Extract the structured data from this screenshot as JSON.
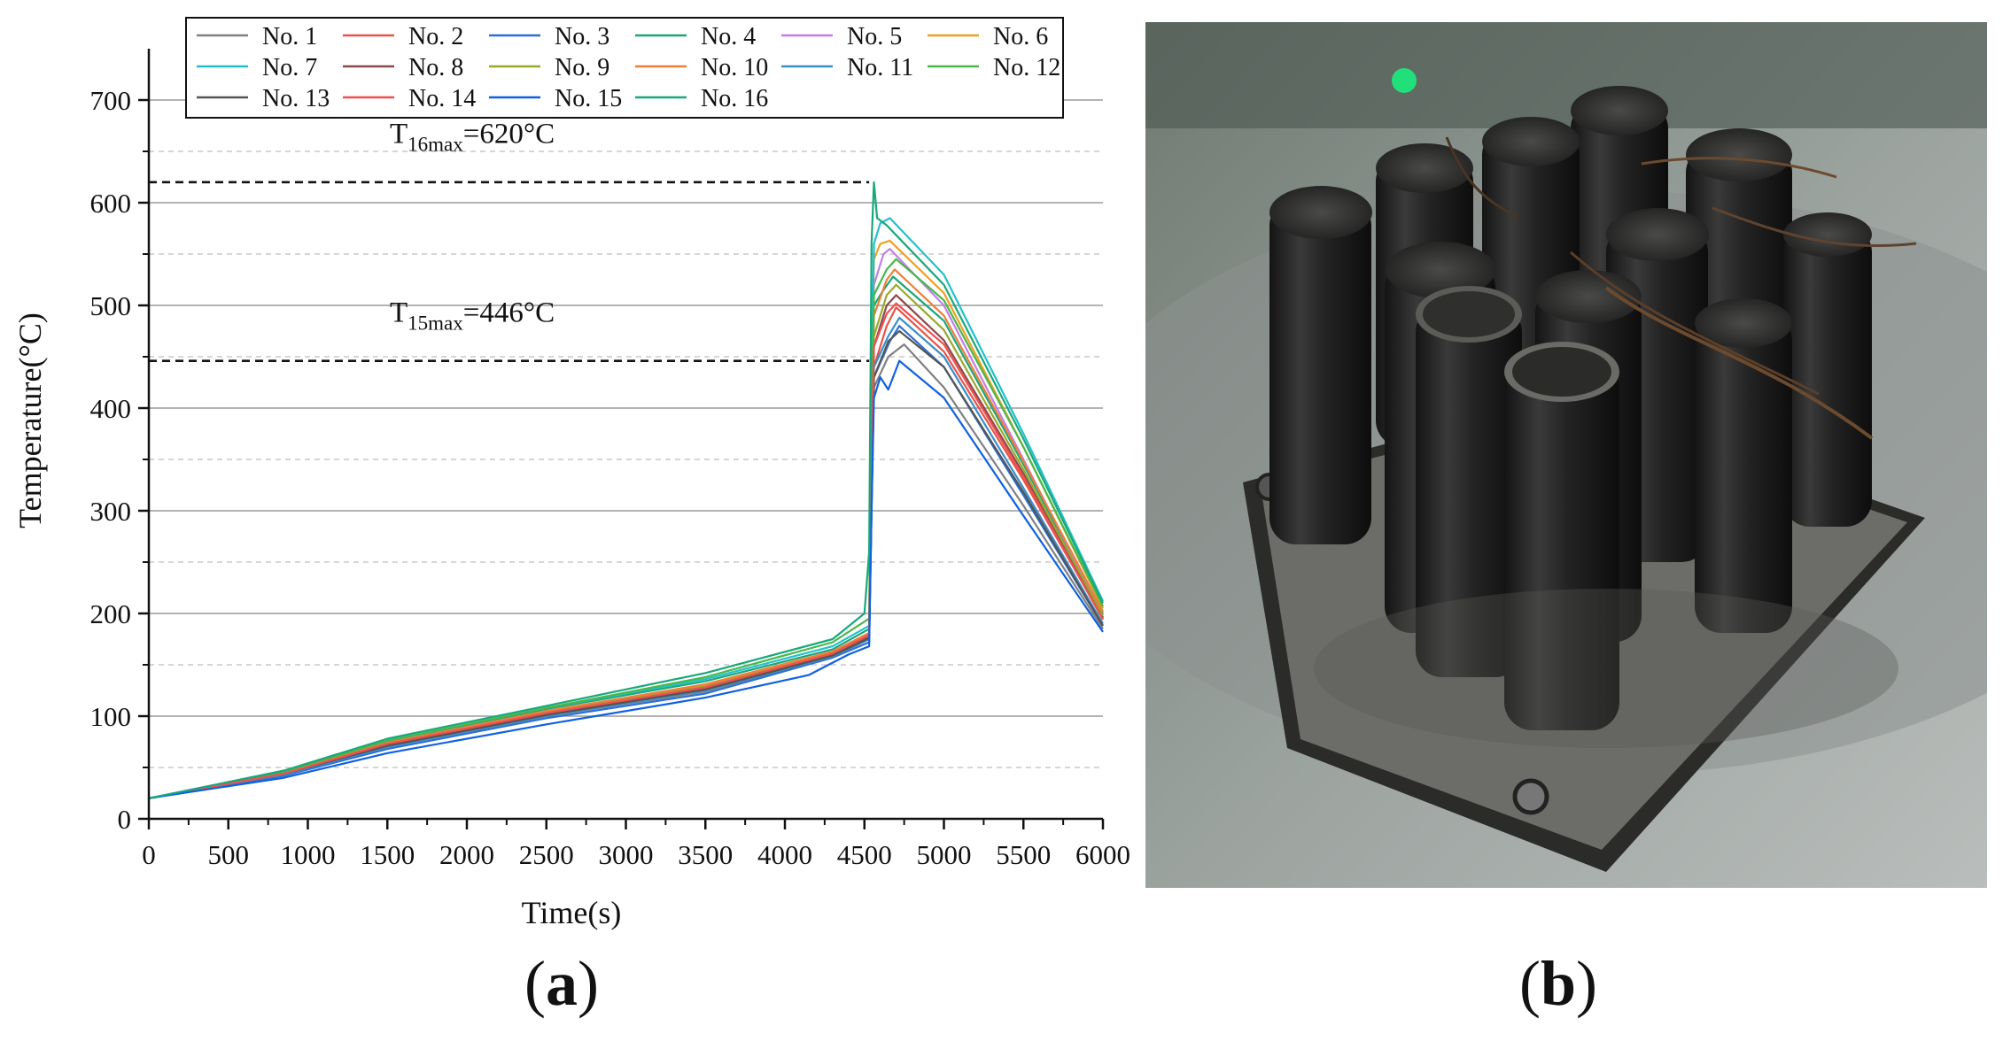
{
  "panel_labels": {
    "a": "a",
    "b": "b"
  },
  "chart_data": {
    "type": "line",
    "xlabel": "Time(s)",
    "ylabel": "Temperature(°C)",
    "xlim": [
      0,
      6000
    ],
    "ylim": [
      0,
      750
    ],
    "xticks": [
      0,
      500,
      1000,
      1500,
      2000,
      2500,
      3000,
      3500,
      4000,
      4500,
      5000,
      5500,
      6000
    ],
    "yticks": [
      0,
      100,
      200,
      300,
      400,
      500,
      600,
      700
    ],
    "grid": "horizontal, solid at major ticks, dashed at minor ticks",
    "legend_placement": "top-center",
    "annotations": [
      {
        "base": "T",
        "sub": "16max",
        "text": "=620°C",
        "value": 620
      },
      {
        "base": "T",
        "sub": "15max",
        "text": "=446°C",
        "value": 446
      }
    ],
    "series": [
      {
        "name": "No. 1",
        "color": "#808080",
        "values": [
          [
            0,
            20
          ],
          [
            850,
            43
          ],
          [
            1500,
            70
          ],
          [
            2500,
            100
          ],
          [
            3500,
            124
          ],
          [
            4300,
            158
          ],
          [
            4530,
            175
          ],
          [
            4545,
            300
          ],
          [
            4560,
            420
          ],
          [
            4650,
            450
          ],
          [
            4750,
            462
          ],
          [
            5000,
            420
          ],
          [
            5500,
            305
          ],
          [
            6000,
            185
          ]
        ]
      },
      {
        "name": "No. 2",
        "color": "#e8534b",
        "values": [
          [
            0,
            20
          ],
          [
            850,
            44
          ],
          [
            1500,
            72
          ],
          [
            2500,
            102
          ],
          [
            3500,
            127
          ],
          [
            4300,
            160
          ],
          [
            4530,
            178
          ],
          [
            4545,
            320
          ],
          [
            4560,
            440
          ],
          [
            4640,
            480
          ],
          [
            4700,
            498
          ],
          [
            5000,
            455
          ],
          [
            5500,
            330
          ],
          [
            6000,
            195
          ]
        ]
      },
      {
        "name": "No. 3",
        "color": "#2a6fd6",
        "values": [
          [
            0,
            20
          ],
          [
            850,
            42
          ],
          [
            1500,
            68
          ],
          [
            2500,
            98
          ],
          [
            3500,
            122
          ],
          [
            4300,
            157
          ],
          [
            4530,
            172
          ],
          [
            4545,
            300
          ],
          [
            4560,
            430
          ],
          [
            4660,
            465
          ],
          [
            4720,
            480
          ],
          [
            5000,
            440
          ],
          [
            5500,
            315
          ],
          [
            6000,
            188
          ]
        ]
      },
      {
        "name": "No. 4",
        "color": "#1aa67a",
        "values": [
          [
            0,
            20
          ],
          [
            850,
            45
          ],
          [
            1500,
            75
          ],
          [
            2500,
            107
          ],
          [
            3500,
            134
          ],
          [
            4300,
            165
          ],
          [
            4530,
            185
          ],
          [
            4545,
            350
          ],
          [
            4560,
            500
          ],
          [
            4620,
            515
          ],
          [
            4680,
            528
          ],
          [
            5000,
            485
          ],
          [
            5500,
            345
          ],
          [
            6000,
            200
          ]
        ]
      },
      {
        "name": "No. 5",
        "color": "#c37ee6",
        "values": [
          [
            0,
            20
          ],
          [
            850,
            44
          ],
          [
            1500,
            72
          ],
          [
            2500,
            103
          ],
          [
            3500,
            128
          ],
          [
            4300,
            160
          ],
          [
            4530,
            178
          ],
          [
            4545,
            380
          ],
          [
            4560,
            520
          ],
          [
            4620,
            550
          ],
          [
            4660,
            555
          ],
          [
            5000,
            500
          ],
          [
            5500,
            350
          ],
          [
            6000,
            198
          ]
        ]
      },
      {
        "name": "No. 6",
        "color": "#f0a020",
        "values": [
          [
            0,
            20
          ],
          [
            850,
            45
          ],
          [
            1500,
            74
          ],
          [
            2500,
            105
          ],
          [
            3500,
            130
          ],
          [
            4300,
            162
          ],
          [
            4530,
            180
          ],
          [
            4545,
            400
          ],
          [
            4560,
            545
          ],
          [
            4600,
            560
          ],
          [
            4660,
            563
          ],
          [
            5000,
            512
          ],
          [
            5500,
            362
          ],
          [
            6000,
            205
          ]
        ]
      },
      {
        "name": "No. 7",
        "color": "#22c0cc",
        "values": [
          [
            0,
            20
          ],
          [
            850,
            45
          ],
          [
            1500,
            76
          ],
          [
            2500,
            108
          ],
          [
            3500,
            136
          ],
          [
            4300,
            168
          ],
          [
            4530,
            188
          ],
          [
            4545,
            420
          ],
          [
            4560,
            560
          ],
          [
            4600,
            580
          ],
          [
            4660,
            585
          ],
          [
            5000,
            530
          ],
          [
            5500,
            375
          ],
          [
            6000,
            212
          ]
        ]
      },
      {
        "name": "No. 8",
        "color": "#8b4a4a",
        "values": [
          [
            0,
            20
          ],
          [
            850,
            44
          ],
          [
            1500,
            72
          ],
          [
            2500,
            102
          ],
          [
            3500,
            127
          ],
          [
            4300,
            160
          ],
          [
            4530,
            178
          ],
          [
            4545,
            330
          ],
          [
            4560,
            460
          ],
          [
            4640,
            500
          ],
          [
            4700,
            510
          ],
          [
            5000,
            466
          ],
          [
            5500,
            336
          ],
          [
            6000,
            196
          ]
        ]
      },
      {
        "name": "No. 9",
        "color": "#9aa82a",
        "values": [
          [
            0,
            20
          ],
          [
            850,
            45
          ],
          [
            1500,
            73
          ],
          [
            2500,
            104
          ],
          [
            3500,
            129
          ],
          [
            4300,
            161
          ],
          [
            4530,
            179
          ],
          [
            4545,
            340
          ],
          [
            4560,
            470
          ],
          [
            4640,
            510
          ],
          [
            4700,
            520
          ],
          [
            5000,
            476
          ],
          [
            5500,
            340
          ],
          [
            6000,
            198
          ]
        ]
      },
      {
        "name": "No. 10",
        "color": "#ef7e3a",
        "values": [
          [
            0,
            20
          ],
          [
            850,
            45
          ],
          [
            1500,
            74
          ],
          [
            2500,
            105
          ],
          [
            3500,
            131
          ],
          [
            4300,
            163
          ],
          [
            4530,
            181
          ],
          [
            4545,
            360
          ],
          [
            4560,
            490
          ],
          [
            4640,
            525
          ],
          [
            4690,
            535
          ],
          [
            5000,
            490
          ],
          [
            5500,
            348
          ],
          [
            6000,
            202
          ]
        ]
      },
      {
        "name": "No. 11",
        "color": "#3a8fc8",
        "values": [
          [
            0,
            20
          ],
          [
            850,
            43
          ],
          [
            1500,
            70
          ],
          [
            2500,
            100
          ],
          [
            3500,
            125
          ],
          [
            4300,
            158
          ],
          [
            4530,
            175
          ],
          [
            4545,
            320
          ],
          [
            4560,
            440
          ],
          [
            4650,
            470
          ],
          [
            4720,
            488
          ],
          [
            5000,
            450
          ],
          [
            5500,
            322
          ],
          [
            6000,
            190
          ]
        ]
      },
      {
        "name": "No. 12",
        "color": "#48b848",
        "values": [
          [
            0,
            20
          ],
          [
            850,
            46
          ],
          [
            1500,
            76
          ],
          [
            2500,
            108
          ],
          [
            3500,
            138
          ],
          [
            4300,
            172
          ],
          [
            4530,
            195
          ],
          [
            4545,
            400
          ],
          [
            4560,
            510
          ],
          [
            4640,
            535
          ],
          [
            4700,
            545
          ],
          [
            5000,
            505
          ],
          [
            5500,
            362
          ],
          [
            6000,
            207
          ]
        ]
      },
      {
        "name": "No. 13",
        "color": "#555555",
        "values": [
          [
            0,
            20
          ],
          [
            850,
            44
          ],
          [
            1500,
            71
          ],
          [
            2500,
            101
          ],
          [
            3500,
            126
          ],
          [
            4300,
            159
          ],
          [
            4530,
            176
          ],
          [
            4545,
            320
          ],
          [
            4560,
            430
          ],
          [
            4650,
            465
          ],
          [
            4720,
            475
          ],
          [
            5000,
            440
          ],
          [
            5500,
            318
          ],
          [
            6000,
            188
          ]
        ]
      },
      {
        "name": "No. 14",
        "color": "#f05050",
        "values": [
          [
            0,
            20
          ],
          [
            850,
            44
          ],
          [
            1500,
            73
          ],
          [
            2500,
            103
          ],
          [
            3500,
            128
          ],
          [
            4300,
            161
          ],
          [
            4530,
            179
          ],
          [
            4545,
            340
          ],
          [
            4560,
            460
          ],
          [
            4640,
            492
          ],
          [
            4700,
            502
          ],
          [
            5000,
            462
          ],
          [
            5500,
            333
          ],
          [
            6000,
            194
          ]
        ]
      },
      {
        "name": "No. 15",
        "color": "#1060e0",
        "values": [
          [
            0,
            20
          ],
          [
            850,
            40
          ],
          [
            1500,
            64
          ],
          [
            2500,
            92
          ],
          [
            3500,
            118
          ],
          [
            4150,
            140
          ],
          [
            4400,
            160
          ],
          [
            4530,
            168
          ],
          [
            4545,
            300
          ],
          [
            4560,
            410
          ],
          [
            4600,
            430
          ],
          [
            4650,
            418
          ],
          [
            4720,
            446
          ],
          [
            5000,
            410
          ],
          [
            5500,
            295
          ],
          [
            6000,
            182
          ]
        ]
      },
      {
        "name": "No. 16",
        "color": "#18a87c",
        "values": [
          [
            0,
            20
          ],
          [
            850,
            47
          ],
          [
            1500,
            78
          ],
          [
            2500,
            110
          ],
          [
            3500,
            142
          ],
          [
            4300,
            175
          ],
          [
            4500,
            200
          ],
          [
            4530,
            260
          ],
          [
            4545,
            560
          ],
          [
            4560,
            620
          ],
          [
            4580,
            585
          ],
          [
            4640,
            578
          ],
          [
            5000,
            520
          ],
          [
            5500,
            370
          ],
          [
            6000,
            210
          ]
        ]
      }
    ]
  }
}
